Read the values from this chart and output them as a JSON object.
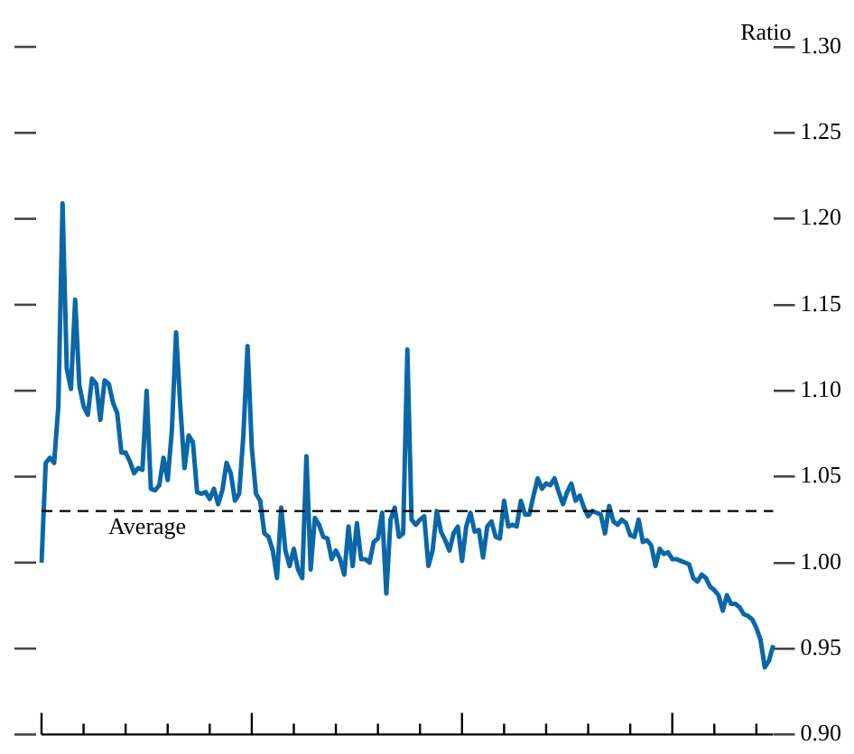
{
  "chart_data": {
    "type": "line",
    "ylabel": "Ratio",
    "color": "#0a67a8",
    "marker": "none",
    "line_style": "solid",
    "tick_labels": "y",
    "ylim": [
      0.9,
      1.3
    ],
    "yticks": [
      {
        "value": 0.9,
        "label": "0.90"
      },
      {
        "value": 0.95,
        "label": "0.95"
      },
      {
        "value": 1.0,
        "label": "1.00"
      },
      {
        "value": 1.05,
        "label": "1.05"
      },
      {
        "value": 1.1,
        "label": "1.10"
      },
      {
        "value": 1.15,
        "label": "1.15"
      },
      {
        "value": 1.2,
        "label": "1.20"
      },
      {
        "value": 1.25,
        "label": "1.25"
      },
      {
        "value": 1.3,
        "label": "1.30"
      }
    ],
    "ref_lines": [
      {
        "axis": "y",
        "value": 1.03,
        "label": "Average",
        "color": "#000000",
        "line_style": "dashed"
      }
    ],
    "categories": [
      null,
      null,
      null,
      null,
      null,
      null,
      null,
      null,
      null,
      null,
      null,
      null,
      null,
      null,
      null,
      null,
      null,
      null,
      null,
      null,
      null,
      null,
      null,
      null,
      null,
      null,
      null,
      null,
      null,
      null,
      null,
      null,
      null,
      null,
      null,
      null,
      null,
      null,
      null,
      null,
      null,
      null,
      null,
      null,
      null,
      null,
      null,
      null,
      null,
      null,
      null,
      null,
      null,
      null,
      null,
      null,
      null,
      null,
      null,
      null,
      null,
      null,
      null,
      null,
      null,
      null,
      null,
      null,
      null,
      null,
      null,
      null,
      null,
      null,
      null,
      null,
      null,
      null,
      null,
      null,
      null,
      null,
      null,
      null,
      null,
      null,
      null,
      null,
      null,
      null,
      null,
      null,
      null,
      null,
      null,
      null,
      null,
      null,
      null,
      null,
      null,
      null,
      null,
      null,
      null,
      null,
      null,
      null,
      null,
      null,
      null,
      null,
      null,
      null,
      null,
      null,
      null,
      null,
      null,
      null,
      null,
      null,
      null,
      null,
      null,
      null,
      null,
      null,
      null,
      null,
      null,
      null,
      null,
      null,
      null,
      null,
      null,
      null,
      null,
      null,
      null,
      null,
      null,
      null,
      null,
      null,
      null,
      null,
      null,
      null,
      null,
      null,
      null,
      null,
      null,
      null,
      null,
      null,
      null,
      null,
      null,
      null,
      null,
      null,
      null,
      null,
      null,
      null,
      null,
      null,
      null,
      null,
      null,
      null,
      null
    ],
    "values": [
      1.0,
      1.058,
      1.061,
      1.058,
      1.091,
      1.209,
      1.113,
      1.101,
      1.153,
      1.103,
      1.091,
      1.086,
      1.107,
      1.104,
      1.083,
      1.106,
      1.104,
      1.093,
      1.087,
      1.064,
      1.064,
      1.059,
      1.052,
      1.055,
      1.054,
      1.1,
      1.043,
      1.042,
      1.045,
      1.061,
      1.048,
      1.077,
      1.134,
      1.091,
      1.055,
      1.074,
      1.07,
      1.041,
      1.04,
      1.041,
      1.037,
      1.043,
      1.034,
      1.042,
      1.058,
      1.052,
      1.036,
      1.04,
      1.074,
      1.126,
      1.067,
      1.04,
      1.036,
      1.017,
      1.015,
      1.007,
      0.991,
      1.032,
      1.007,
      0.998,
      1.008,
      0.996,
      0.991,
      1.062,
      0.996,
      1.026,
      1.022,
      1.015,
      1.014,
      1.002,
      1.007,
      1.002,
      0.993,
      1.021,
      0.998,
      1.023,
      1.002,
      1.002,
      1.0,
      1.012,
      1.014,
      1.029,
      0.982,
      1.025,
      1.032,
      1.015,
      1.017,
      1.124,
      1.025,
      1.022,
      1.025,
      1.027,
      0.998,
      1.007,
      1.03,
      1.018,
      1.013,
      1.007,
      1.017,
      1.021,
      1.001,
      1.021,
      1.029,
      1.018,
      1.019,
      1.003,
      1.021,
      1.024,
      1.015,
      1.014,
      1.036,
      1.021,
      1.022,
      1.021,
      1.036,
      1.028,
      1.028,
      1.039,
      1.049,
      1.043,
      1.046,
      1.045,
      1.049,
      1.041,
      1.034,
      1.041,
      1.046,
      1.036,
      1.039,
      1.032,
      1.027,
      1.03,
      1.029,
      1.028,
      1.017,
      1.033,
      1.024,
      1.022,
      1.025,
      1.023,
      1.016,
      1.015,
      1.025,
      1.012,
      1.013,
      1.01,
      0.998,
      1.008,
      1.005,
      1.006,
      1.002,
      1.002,
      1.001,
      1.0,
      0.999,
      0.991,
      0.989,
      0.993,
      0.991,
      0.986,
      0.984,
      0.981,
      0.972,
      0.981,
      0.976,
      0.976,
      0.974,
      0.97,
      0.969,
      0.967,
      0.962,
      0.955,
      0.939,
      0.943,
      0.952
    ]
  }
}
